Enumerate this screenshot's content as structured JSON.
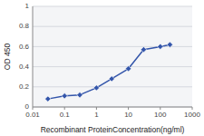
{
  "chart_data": {
    "type": "line",
    "x": [
      0.03,
      0.1,
      0.3,
      1.0,
      3.0,
      10.0,
      30.0,
      100.0,
      200.0
    ],
    "values": [
      0.08,
      0.11,
      0.12,
      0.19,
      0.28,
      0.38,
      0.57,
      0.6,
      0.62
    ],
    "color": "#3355aa",
    "marker": "diamond",
    "log": "x",
    "xlim": [
      0.01,
      1000
    ],
    "ylim": [
      0,
      1
    ],
    "xticks": [
      0.01,
      0.1,
      1,
      10,
      100,
      1000
    ],
    "yticks": [
      0,
      0.2,
      0.4,
      0.6,
      0.8,
      1
    ],
    "xlabel": "Recombinant ProteinConcentration(ng/ml)",
    "ylabel": "OD 450",
    "grid": true
  }
}
